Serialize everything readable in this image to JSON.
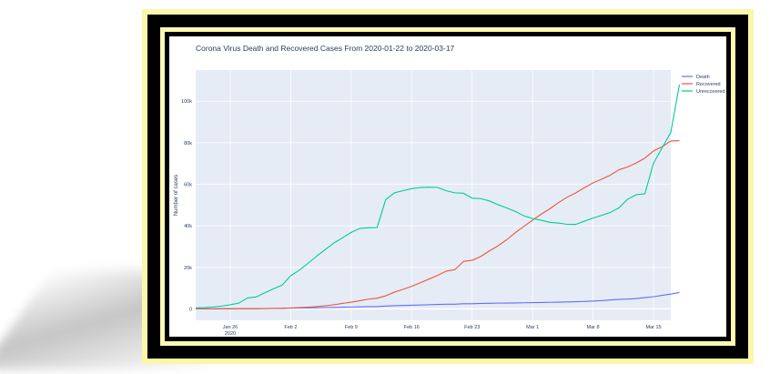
{
  "chart_data": {
    "type": "line",
    "title": "Corona Virus Death and Recovered Cases From 2020-01-22 to 2020-03-17",
    "xlabel": "",
    "ylabel": "Number of cases",
    "x_start": "2020-01-22",
    "x_end": "2020-03-17",
    "ylim": [
      -5500,
      115000
    ],
    "x_ticks": [
      {
        "date": "2020-01-26",
        "label": "Jan 26",
        "sub": "2020"
      },
      {
        "date": "2020-02-02",
        "label": "Feb 2",
        "sub": ""
      },
      {
        "date": "2020-02-09",
        "label": "Feb 9",
        "sub": ""
      },
      {
        "date": "2020-02-16",
        "label": "Feb 16",
        "sub": ""
      },
      {
        "date": "2020-02-23",
        "label": "Feb 23",
        "sub": ""
      },
      {
        "date": "2020-03-01",
        "label": "Mar 1",
        "sub": ""
      },
      {
        "date": "2020-03-08",
        "label": "Mar 8",
        "sub": ""
      },
      {
        "date": "2020-03-15",
        "label": "Mar 15",
        "sub": ""
      }
    ],
    "y_ticks": [
      {
        "value": 0,
        "label": "0"
      },
      {
        "value": 20000,
        "label": "20k"
      },
      {
        "value": 40000,
        "label": "40k"
      },
      {
        "value": 60000,
        "label": "60k"
      },
      {
        "value": 80000,
        "label": "80k"
      },
      {
        "value": 100000,
        "label": "100k"
      }
    ],
    "grid": true,
    "legend_position": "right",
    "series": [
      {
        "name": "Death",
        "color": "#636efa",
        "values": [
          17,
          18,
          26,
          42,
          56,
          82,
          131,
          133,
          171,
          213,
          259,
          362,
          426,
          492,
          564,
          634,
          719,
          806,
          906,
          1013,
          1113,
          1118,
          1371,
          1523,
          1666,
          1770,
          1868,
          2007,
          2122,
          2247,
          2251,
          2458,
          2469,
          2629,
          2708,
          2770,
          2814,
          2872,
          2941,
          2996,
          3085,
          3160,
          3254,
          3348,
          3460,
          3558,
          3802,
          3988,
          4262,
          4615,
          4720,
          4976,
          5411,
          5833,
          6520,
          7126,
          7905
        ]
      },
      {
        "name": "Recovered",
        "color": "#ef553b",
        "values": [
          28,
          30,
          36,
          39,
          52,
          61,
          107,
          126,
          143,
          222,
          284,
          472,
          623,
          852,
          1124,
          1487,
          2011,
          2616,
          3244,
          3946,
          4683,
          5150,
          6295,
          8058,
          9395,
          10865,
          12583,
          14352,
          16121,
          18177,
          18890,
          22886,
          23394,
          25227,
          27905,
          30384,
          33277,
          36711,
          39782,
          42716,
          45602,
          48228,
          51170,
          53796,
          55865,
          58358,
          60694,
          62494,
          64404,
          67003,
          68324,
          70251,
          72624,
          76034,
          78088,
          80840,
          81000
        ]
      },
      {
        "name": "Unrecovered",
        "color": "#00cc96",
        "values": [
          510,
          606,
          879,
          1353,
          2010,
          2784,
          5275,
          5745,
          7767,
          9652,
          11449,
          15963,
          18625,
          21945,
          25341,
          28580,
          31737,
          34242,
          36844,
          38737,
          39125,
          39162,
          52650,
          55884,
          56950,
          57902,
          58425,
          58599,
          58469,
          56897,
          55896,
          55697,
          53313,
          53106,
          51983,
          50173,
          48613,
          46906,
          44809,
          43518,
          42683,
          41674,
          41323,
          40725,
          40698,
          42229,
          43751,
          45048,
          46448,
          48650,
          52810,
          54980,
          55440,
          70130,
          77590,
          85000,
          108000
        ]
      }
    ]
  }
}
